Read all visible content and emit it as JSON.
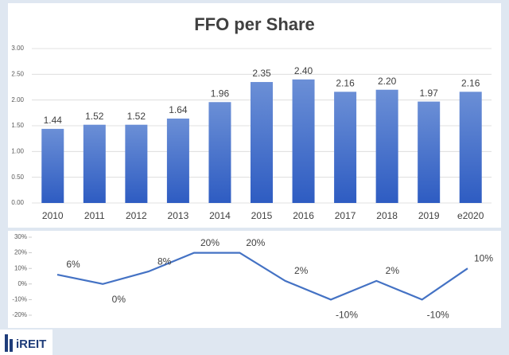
{
  "chart_data": [
    {
      "type": "bar",
      "title": "FFO per Share",
      "categories": [
        "2010",
        "2011",
        "2012",
        "2013",
        "2014",
        "2015",
        "2016",
        "2017",
        "2018",
        "2019",
        "e2020"
      ],
      "values": [
        1.44,
        1.52,
        1.52,
        1.64,
        1.96,
        2.35,
        2.4,
        2.16,
        2.2,
        1.97,
        2.16
      ],
      "value_labels": [
        "1.44",
        "1.52",
        "1.52",
        "1.64",
        "1.96",
        "2.35",
        "2.40",
        "2.16",
        "2.20",
        "1.97",
        "2.16"
      ],
      "color": "#4472c4",
      "ylim": [
        0,
        3
      ],
      "yticks": [
        {
          "value": 0,
          "label": "0.00"
        },
        {
          "value": 0.5,
          "label": "0.50"
        },
        {
          "value": 1,
          "label": "1.00"
        },
        {
          "value": 1.5,
          "label": "1.50"
        },
        {
          "value": 2,
          "label": "2.00"
        },
        {
          "value": 2.5,
          "label": "2.50"
        },
        {
          "value": 3,
          "label": "3.00"
        }
      ],
      "grid": true
    },
    {
      "type": "line",
      "values": [
        6,
        0,
        8,
        20,
        20,
        2,
        -10,
        2,
        -10,
        10
      ],
      "value_labels": [
        "6%",
        "0%",
        "8%",
        "20%",
        "20%",
        "2%",
        "-10%",
        "2%",
        "-10%",
        "10%"
      ],
      "color": "#4472c4",
      "ylim": [
        -20,
        30
      ],
      "yticks": [
        {
          "value": 30,
          "label": "30%"
        },
        {
          "value": 20,
          "label": "20%"
        },
        {
          "value": 10,
          "label": "10%"
        },
        {
          "value": 0,
          "label": "0%"
        },
        {
          "value": -10,
          "label": "-10%"
        },
        {
          "value": -20,
          "label": "-20%"
        }
      ],
      "grid": false
    }
  ],
  "logo": "iREIT"
}
